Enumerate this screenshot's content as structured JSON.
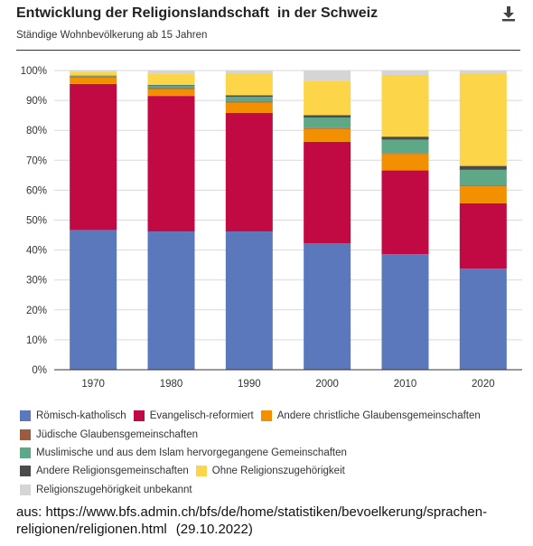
{
  "header": {
    "title": "Entwicklung der Religionslandschaft  in der Schweiz",
    "subtitle": "Ständige Wohnbevölkerung ab 15 Jahren",
    "download_icon": "download-icon"
  },
  "chart_data": {
    "type": "bar",
    "stacked": true,
    "categories": [
      "1970",
      "1980",
      "1990",
      "2000",
      "2010",
      "2020"
    ],
    "ylim": [
      0,
      100
    ],
    "yticks": [
      "0%",
      "10%",
      "20%",
      "30%",
      "40%",
      "50%",
      "60%",
      "70%",
      "80%",
      "90%",
      "100%"
    ],
    "grid": true,
    "legend_position": "bottom",
    "series": [
      {
        "name": "Römisch-katholisch",
        "color": "#5b78bd",
        "values": [
          46.7,
          46.2,
          46.2,
          42.3,
          38.6,
          33.8
        ]
      },
      {
        "name": "Evangelisch-reformiert",
        "color": "#c10a44",
        "values": [
          48.8,
          45.3,
          39.6,
          33.9,
          28.0,
          21.8
        ]
      },
      {
        "name": "Andere christliche Glaubensgemeinschaften",
        "color": "#f29000",
        "values": [
          2.2,
          2.3,
          3.5,
          4.3,
          5.5,
          5.7
        ]
      },
      {
        "name": "Jüdische Glaubensgemeinschaften",
        "color": "#9c5a40",
        "values": [
          0.3,
          0.3,
          0.3,
          0.2,
          0.2,
          0.2
        ]
      },
      {
        "name": "Muslimische und aus dem Islam hervorgegangene Gemeinschaften",
        "color": "#5ea787",
        "values": [
          0.2,
          0.9,
          1.6,
          3.6,
          4.6,
          5.3
        ]
      },
      {
        "name": "Andere Religionsgemeinschaften",
        "color": "#4b4b4b",
        "values": [
          0.1,
          0.2,
          0.5,
          0.8,
          1.0,
          1.3
        ]
      },
      {
        "name": "Ohne Religionszugehörigkeit",
        "color": "#fdd549",
        "values": [
          1.2,
          3.8,
          7.4,
          11.3,
          20.6,
          31.0
        ]
      },
      {
        "name": "Religionszugehörigkeit unbekannt",
        "color": "#d5d5d5",
        "values": [
          0.5,
          1.0,
          0.9,
          3.6,
          1.5,
          0.9
        ]
      }
    ]
  },
  "source": {
    "text": "aus: https://www.bfs.admin.ch/bfs/de/home/statistiken/bevoelkerung/sprachen-religionen/religionen.html",
    "date": "(29.10.2022)"
  }
}
